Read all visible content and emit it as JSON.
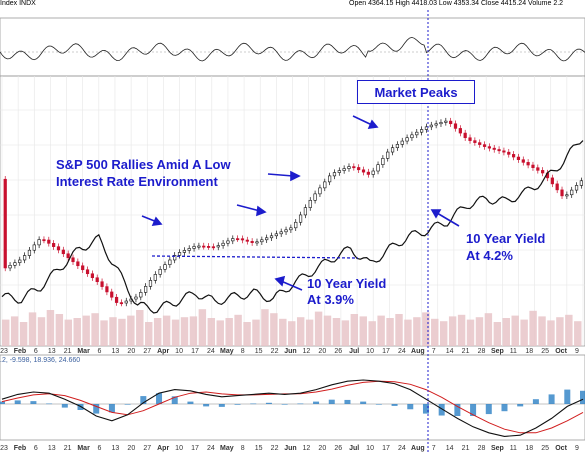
{
  "header": {
    "index_label": "Index INDX",
    "ohlc": "Open 4364.15  High 4418.03  Low 4353.34  Close 4415.24  Volume 2.2"
  },
  "annotations": {
    "market_peaks": "Market Peaks",
    "rallies_line1": "S&P 500 Rallies Amid A Low",
    "rallies_line2": "Interest Rate Environment",
    "yield_39_line1": "10 Year Yield",
    "yield_39_line2": "At 3.9%",
    "yield_42_line1": "10 Year Yield",
    "yield_42_line2": "At 4.2%"
  },
  "macd_label": ".2, -9.598, 18.936, 24.660",
  "colors": {
    "annotation": "#1c1ccc",
    "candle_up": "#111111",
    "candle_down": "#c8102e",
    "yield_line": "#111111",
    "volume_bar": "#e8c4c8",
    "macd_line": "#111111",
    "signal_line": "#d11e1e",
    "histogram": "#2b7fc4"
  },
  "chart_data": {
    "type": "line",
    "title": "",
    "x_tick_labels": [
      "23",
      "Feb",
      "6",
      "13",
      "21",
      "Mar",
      "6",
      "13",
      "20",
      "27",
      "Apr",
      "10",
      "17",
      "24",
      "May",
      "8",
      "15",
      "22",
      "Jun",
      "12",
      "20",
      "26",
      "Jul",
      "10",
      "17",
      "24",
      "Aug",
      "7",
      "14",
      "21",
      "28",
      "Sep",
      "11",
      "18",
      "25",
      "Oct",
      "9"
    ],
    "series": [
      {
        "name": "",
        "kind": "candlestick_close",
        "x": [
          0,
          6,
          12,
          18,
          24,
          30,
          36,
          42,
          48,
          54,
          60,
          66,
          72,
          78,
          84,
          90,
          96,
          102,
          108,
          114,
          120,
          126,
          132,
          138,
          144,
          150,
          156,
          162,
          168,
          174,
          180
        ],
        "values": [
          4020,
          4060,
          4140,
          4090,
          4030,
          3970,
          3890,
          3920,
          4010,
          4080,
          4110,
          4105,
          4140,
          4120,
          4150,
          4180,
          4290,
          4380,
          4410,
          4375,
          4470,
          4520,
          4560,
          4580,
          4510,
          4480,
          4460,
          4420,
          4380,
          4290,
          4360
        ]
      },
      {
        "name": "",
        "kind": "yield_overlay",
        "x": [
          0,
          6,
          12,
          18,
          24,
          30,
          36,
          42,
          48,
          54,
          60,
          66,
          72,
          78,
          84,
          90,
          96,
          102,
          108,
          114,
          120,
          126,
          132,
          138,
          144,
          150,
          156,
          162,
          168,
          174,
          180
        ],
        "values": [
          3.52,
          3.5,
          3.6,
          3.75,
          3.9,
          3.98,
          3.72,
          3.45,
          3.42,
          3.48,
          3.55,
          3.48,
          3.52,
          3.55,
          3.5,
          3.62,
          3.72,
          3.82,
          3.9,
          3.78,
          3.9,
          4.0,
          4.05,
          4.12,
          4.25,
          4.3,
          4.28,
          4.35,
          4.45,
          4.6,
          4.8
        ]
      }
    ],
    "volume": [
      33,
      37,
      30,
      42,
      36,
      45,
      40,
      33,
      35,
      38,
      41,
      32,
      36,
      34,
      38,
      45,
      30,
      35,
      38,
      33,
      36,
      37,
      46,
      35,
      32,
      35,
      39,
      30,
      33,
      46,
      41,
      34,
      31,
      36,
      33,
      43,
      38,
      35,
      32,
      40,
      37,
      31,
      38,
      35,
      40,
      33,
      36,
      42,
      34,
      31,
      37,
      39,
      33,
      36,
      41,
      30,
      35,
      38,
      33,
      44,
      37,
      32,
      36,
      39,
      31
    ],
    "macd": {
      "macd_line": [
        0.2,
        0.4,
        0.5,
        0.45,
        0.2,
        -0.1,
        -0.5,
        -0.7,
        -0.45,
        0.05,
        0.45,
        0.6,
        0.55,
        0.4,
        0.3,
        0.35,
        0.4,
        0.45,
        0.4,
        0.45,
        0.6,
        0.8,
        0.95,
        1.0,
        0.95,
        0.85,
        0.6,
        0.2,
        -0.2,
        -0.6,
        -0.95,
        -1.2,
        -1.35,
        -1.3,
        -1.0,
        -0.6,
        -0.1,
        0.2
      ],
      "signal_line": [
        0.1,
        0.25,
        0.38,
        0.43,
        0.35,
        0.15,
        -0.1,
        -0.35,
        -0.45,
        -0.28,
        0.0,
        0.28,
        0.45,
        0.5,
        0.42,
        0.38,
        0.38,
        0.4,
        0.42,
        0.43,
        0.5,
        0.62,
        0.78,
        0.9,
        0.95,
        0.93,
        0.82,
        0.6,
        0.28,
        -0.1,
        -0.45,
        -0.78,
        -1.05,
        -1.2,
        -1.2,
        -1.0,
        -0.7,
        -0.35
      ],
      "zero_line": 0
    },
    "panels": [
      "indicator",
      "price",
      "volume",
      "macd"
    ],
    "grid": true,
    "event_marker_label": "Aug"
  }
}
